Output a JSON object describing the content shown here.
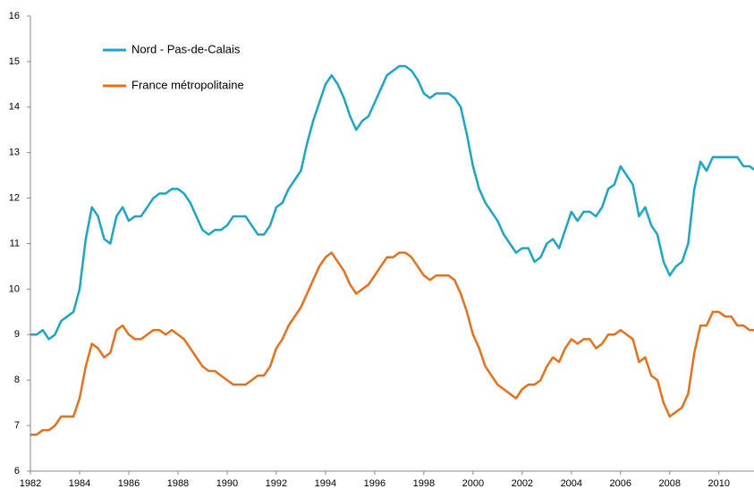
{
  "chart_data": {
    "type": "line",
    "x": [
      1982,
      1982.25,
      1982.5,
      1982.75,
      1983,
      1983.25,
      1983.5,
      1983.75,
      1984,
      1984.25,
      1984.5,
      1984.75,
      1985,
      1985.25,
      1985.5,
      1985.75,
      1986,
      1986.25,
      1986.5,
      1986.75,
      1987,
      1987.25,
      1987.5,
      1987.75,
      1988,
      1988.25,
      1988.5,
      1988.75,
      1989,
      1989.25,
      1989.5,
      1989.75,
      1990,
      1990.25,
      1990.5,
      1990.75,
      1991,
      1991.25,
      1991.5,
      1991.75,
      1992,
      1992.25,
      1992.5,
      1992.75,
      1993,
      1993.25,
      1993.5,
      1993.75,
      1994,
      1994.25,
      1994.5,
      1994.75,
      1995,
      1995.25,
      1995.5,
      1995.75,
      1996,
      1996.25,
      1996.5,
      1996.75,
      1997,
      1997.25,
      1997.5,
      1997.75,
      1998,
      1998.25,
      1998.5,
      1998.75,
      1999,
      1999.25,
      1999.5,
      1999.75,
      2000,
      2000.25,
      2000.5,
      2000.75,
      2001,
      2001.25,
      2001.5,
      2001.75,
      2002,
      2002.25,
      2002.5,
      2002.75,
      2003,
      2003.25,
      2003.5,
      2003.75,
      2004,
      2004.25,
      2004.5,
      2004.75,
      2005,
      2005.25,
      2005.5,
      2005.75,
      2006,
      2006.25,
      2006.5,
      2006.75,
      2007,
      2007.25,
      2007.5,
      2007.75,
      2008,
      2008.25,
      2008.5,
      2008.75,
      2009,
      2009.25,
      2009.5,
      2009.75,
      2010,
      2010.25,
      2010.5,
      2010.75,
      2011,
      2011.25,
      2011.5
    ],
    "series": [
      {
        "name": "Nord - Pas-de-Calais",
        "color": "#1ea5c4",
        "values": [
          9.0,
          9.0,
          9.1,
          8.9,
          9.0,
          9.3,
          9.4,
          9.5,
          10.0,
          11.1,
          11.8,
          11.6,
          11.1,
          11.0,
          11.6,
          11.8,
          11.5,
          11.6,
          11.6,
          11.8,
          12.0,
          12.1,
          12.1,
          12.2,
          12.2,
          12.1,
          11.9,
          11.6,
          11.3,
          11.2,
          11.3,
          11.3,
          11.4,
          11.6,
          11.6,
          11.6,
          11.4,
          11.2,
          11.2,
          11.4,
          11.8,
          11.9,
          12.2,
          12.4,
          12.6,
          13.2,
          13.7,
          14.1,
          14.5,
          14.7,
          14.5,
          14.2,
          13.8,
          13.5,
          13.7,
          13.8,
          14.1,
          14.4,
          14.7,
          14.8,
          14.9,
          14.9,
          14.8,
          14.6,
          14.3,
          14.2,
          14.3,
          14.3,
          14.3,
          14.2,
          14.0,
          13.4,
          12.7,
          12.2,
          11.9,
          11.7,
          11.5,
          11.2,
          11.0,
          10.8,
          10.9,
          10.9,
          10.6,
          10.7,
          11.0,
          11.1,
          10.9,
          11.3,
          11.7,
          11.5,
          11.7,
          11.7,
          11.6,
          11.8,
          12.2,
          12.3,
          12.7,
          12.5,
          12.3,
          11.6,
          11.8,
          11.4,
          11.2,
          10.6,
          10.3,
          10.5,
          10.6,
          11.0,
          12.2,
          12.8,
          12.6,
          12.9,
          12.9,
          12.9,
          12.9,
          12.9,
          12.7,
          12.7,
          12.6
        ]
      },
      {
        "name": "France métropolitaine",
        "color": "#e5701e",
        "values": [
          6.8,
          6.8,
          6.9,
          6.9,
          7.0,
          7.2,
          7.2,
          7.2,
          7.6,
          8.3,
          8.8,
          8.7,
          8.5,
          8.6,
          9.1,
          9.2,
          9.0,
          8.9,
          8.9,
          9.0,
          9.1,
          9.1,
          9.0,
          9.1,
          9.0,
          8.9,
          8.7,
          8.5,
          8.3,
          8.2,
          8.2,
          8.1,
          8.0,
          7.9,
          7.9,
          7.9,
          8.0,
          8.1,
          8.1,
          8.3,
          8.7,
          8.9,
          9.2,
          9.4,
          9.6,
          9.9,
          10.2,
          10.5,
          10.7,
          10.8,
          10.6,
          10.4,
          10.1,
          9.9,
          10.0,
          10.1,
          10.3,
          10.5,
          10.7,
          10.7,
          10.8,
          10.8,
          10.7,
          10.5,
          10.3,
          10.2,
          10.3,
          10.3,
          10.3,
          10.2,
          9.9,
          9.5,
          9.0,
          8.7,
          8.3,
          8.1,
          7.9,
          7.8,
          7.7,
          7.6,
          7.8,
          7.9,
          7.9,
          8.0,
          8.3,
          8.5,
          8.4,
          8.7,
          8.9,
          8.8,
          8.9,
          8.9,
          8.7,
          8.8,
          9.0,
          9.0,
          9.1,
          9.0,
          8.9,
          8.4,
          8.5,
          8.1,
          8.0,
          7.5,
          7.2,
          7.3,
          7.4,
          7.7,
          8.6,
          9.2,
          9.2,
          9.5,
          9.5,
          9.4,
          9.4,
          9.2,
          9.2,
          9.1,
          9.1
        ]
      }
    ],
    "xlim": [
      1982,
      2011.5
    ],
    "xticks": [
      1982,
      1984,
      1986,
      1988,
      1990,
      1992,
      1994,
      1996,
      1998,
      2000,
      2002,
      2004,
      2006,
      2008,
      2010
    ],
    "ylim": [
      6,
      16
    ],
    "yticks": [
      6,
      7,
      8,
      9,
      10,
      11,
      12,
      13,
      14,
      15,
      16
    ],
    "grid": false
  }
}
